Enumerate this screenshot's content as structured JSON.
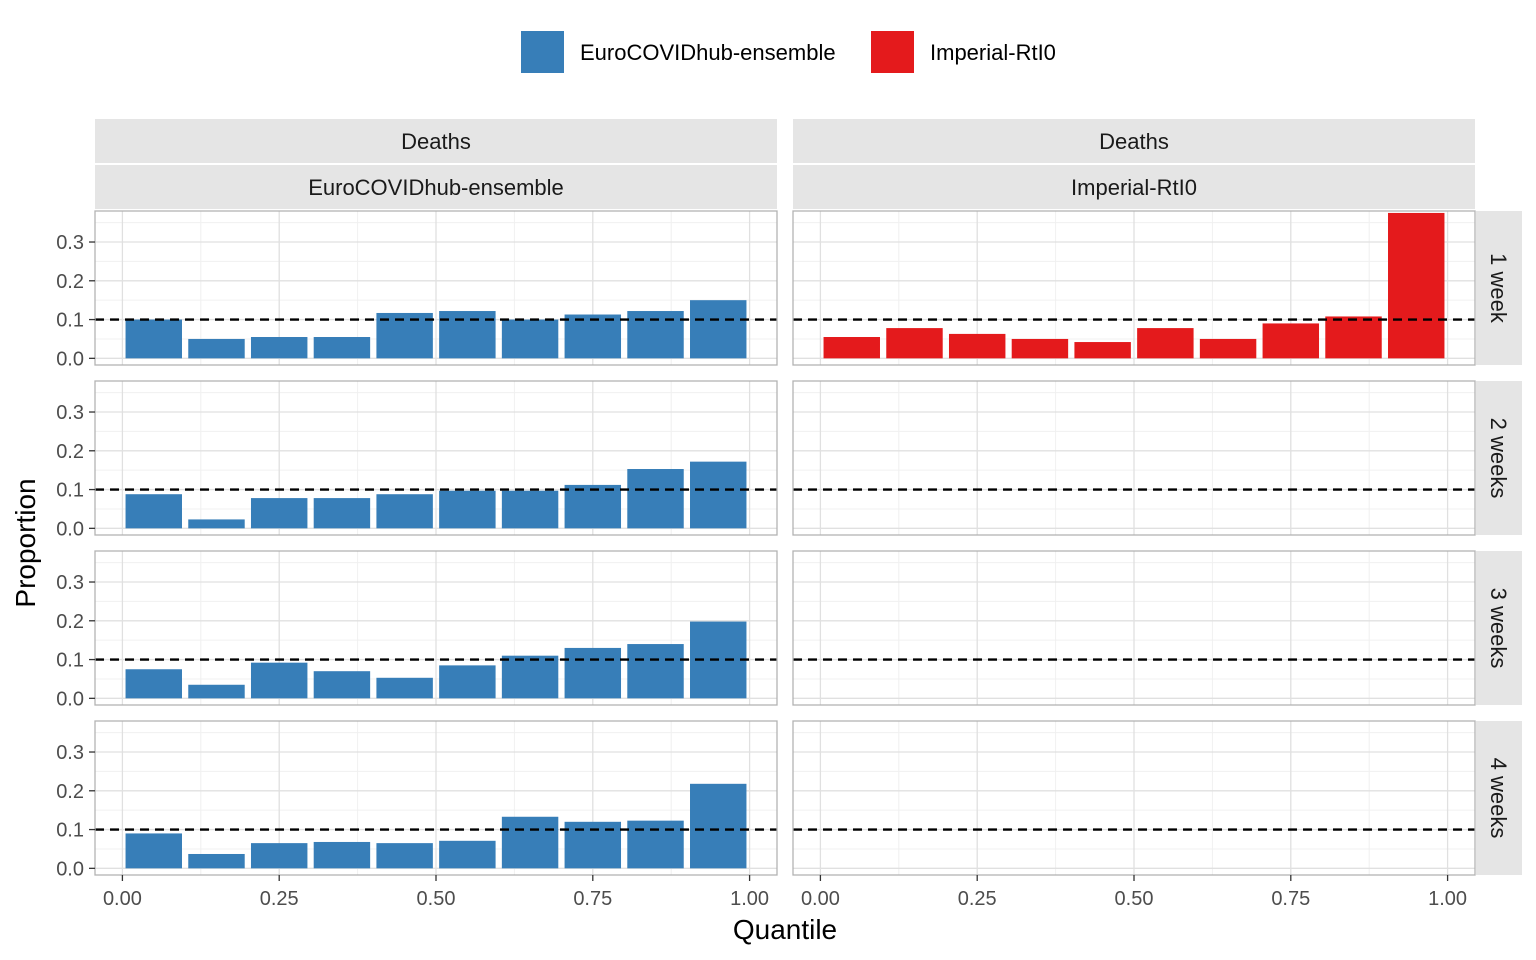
{
  "chart_data": {
    "type": "bar",
    "xlabel": "Quantile",
    "ylabel": "Proportion",
    "xlim": [
      0,
      1
    ],
    "ylim": [
      0,
      0.38
    ],
    "x_ticks": [
      "0.00",
      "0.25",
      "0.50",
      "0.75",
      "1.00"
    ],
    "x_tick_values": [
      0,
      0.25,
      0.5,
      0.75,
      1.0
    ],
    "y_ticks": [
      "0.0",
      "0.1",
      "0.2",
      "0.3"
    ],
    "y_tick_values": [
      0,
      0.1,
      0.2,
      0.3
    ],
    "reference_line": 0.1,
    "grid": true,
    "legend_position": "top",
    "bin_centers": [
      0.05,
      0.15,
      0.25,
      0.35,
      0.45,
      0.55,
      0.65,
      0.75,
      0.85,
      0.95
    ],
    "bin_width": 0.1,
    "column_strips": [
      {
        "target": "Deaths",
        "model": "EuroCOVIDhub-ensemble"
      },
      {
        "target": "Deaths",
        "model": "Imperial-RtI0"
      }
    ],
    "row_strips": [
      "1 week",
      "2 weeks",
      "3 weeks",
      "4 weeks"
    ],
    "series": [
      {
        "name": "EuroCOVIDhub-ensemble",
        "color": "#377EB8",
        "values_by_horizon": [
          [
            0.1,
            0.05,
            0.055,
            0.055,
            0.117,
            0.122,
            0.1,
            0.113,
            0.122,
            0.15
          ],
          [
            0.088,
            0.023,
            0.078,
            0.078,
            0.088,
            0.097,
            0.097,
            0.112,
            0.153,
            0.172
          ],
          [
            0.075,
            0.035,
            0.092,
            0.07,
            0.053,
            0.085,
            0.11,
            0.13,
            0.14,
            0.198
          ],
          [
            0.09,
            0.037,
            0.065,
            0.068,
            0.065,
            0.071,
            0.133,
            0.12,
            0.123,
            0.218
          ]
        ]
      },
      {
        "name": "Imperial-RtI0",
        "color": "#E41A1C",
        "values_by_horizon": [
          [
            0.055,
            0.078,
            0.063,
            0.05,
            0.042,
            0.078,
            0.05,
            0.09,
            0.108,
            0.375
          ],
          [],
          [],
          []
        ]
      }
    ]
  }
}
